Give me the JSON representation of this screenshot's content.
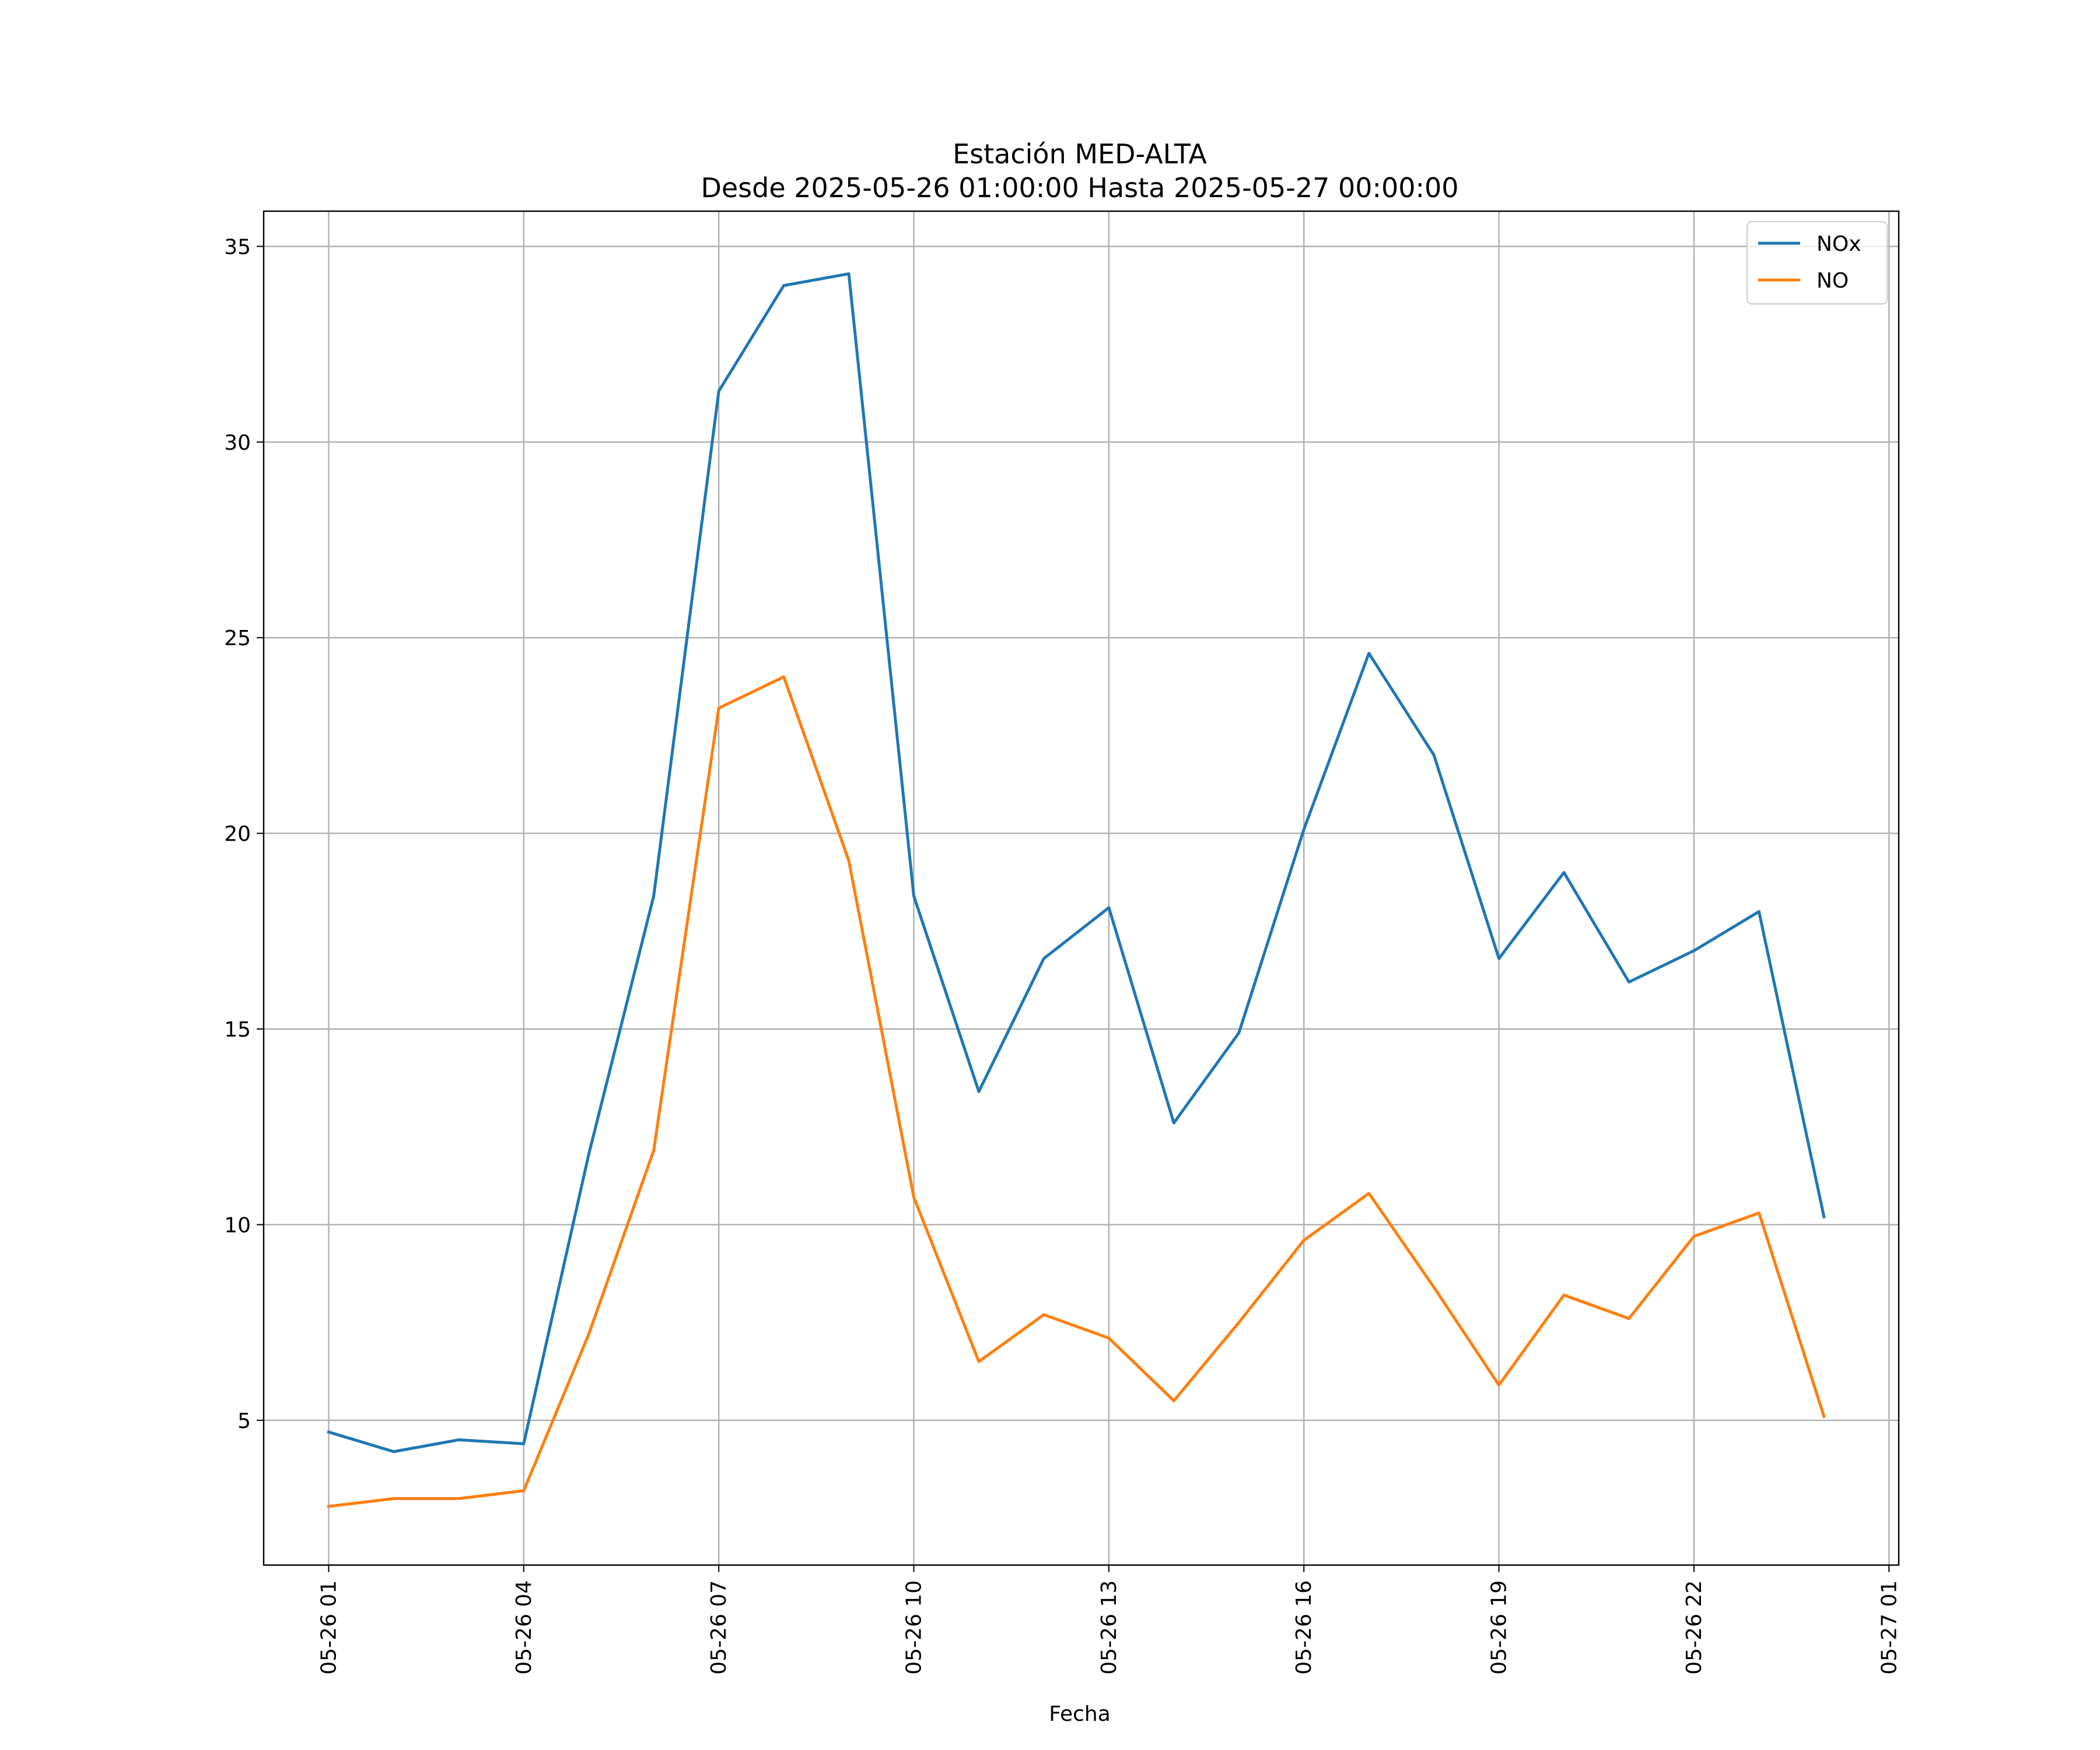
{
  "chart_data": {
    "type": "line",
    "title": "Estación MED-ALTA",
    "subtitle": "Desde 2025-05-26 01:00:00 Hasta 2025-05-27 00:00:00",
    "xlabel": "Fecha",
    "ylabel": "",
    "x": [
      "2025-05-26 01:00",
      "2025-05-26 02:00",
      "2025-05-26 03:00",
      "2025-05-26 04:00",
      "2025-05-26 05:00",
      "2025-05-26 06:00",
      "2025-05-26 07:00",
      "2025-05-26 08:00",
      "2025-05-26 09:00",
      "2025-05-26 10:00",
      "2025-05-26 11:00",
      "2025-05-26 12:00",
      "2025-05-26 13:00",
      "2025-05-26 14:00",
      "2025-05-26 15:00",
      "2025-05-26 16:00",
      "2025-05-26 17:00",
      "2025-05-26 18:00",
      "2025-05-26 19:00",
      "2025-05-26 20:00",
      "2025-05-26 21:00",
      "2025-05-26 22:00",
      "2025-05-26 23:00",
      "2025-05-27 00:00"
    ],
    "x_range": [
      "2025-05-26 00:00",
      "2025-05-27 01:09"
    ],
    "x_ticks": [
      {
        "at": "2025-05-26 01:00",
        "label": "05-26 01"
      },
      {
        "at": "2025-05-26 04:00",
        "label": "05-26 04"
      },
      {
        "at": "2025-05-26 07:00",
        "label": "05-26 07"
      },
      {
        "at": "2025-05-26 10:00",
        "label": "05-26 10"
      },
      {
        "at": "2025-05-26 13:00",
        "label": "05-26 13"
      },
      {
        "at": "2025-05-26 16:00",
        "label": "05-26 16"
      },
      {
        "at": "2025-05-26 19:00",
        "label": "05-26 19"
      },
      {
        "at": "2025-05-26 22:00",
        "label": "05-26 22"
      },
      {
        "at": "2025-05-27 01:00",
        "label": "05-27 01"
      }
    ],
    "ylim": [
      1.3,
      35.9
    ],
    "y_ticks": [
      5,
      10,
      15,
      20,
      25,
      30,
      35
    ],
    "grid": true,
    "legend_position": "top-right",
    "series": [
      {
        "name": "NOx",
        "color": "#1f77b4",
        "values": [
          4.7,
          4.2,
          4.5,
          4.4,
          11.8,
          18.4,
          31.3,
          34.0,
          34.3,
          18.4,
          13.4,
          16.8,
          18.1,
          12.6,
          14.9,
          20.1,
          24.6,
          22.0,
          16.8,
          19.0,
          16.2,
          17.0,
          18.0,
          10.2
        ]
      },
      {
        "name": "NO",
        "color": "#ff7f0e",
        "values": [
          2.8,
          3.0,
          3.0,
          3.2,
          7.2,
          11.9,
          23.2,
          24.0,
          19.3,
          10.7,
          6.5,
          7.7,
          7.1,
          5.5,
          7.5,
          9.6,
          10.8,
          8.4,
          5.9,
          8.2,
          7.6,
          9.7,
          10.3,
          5.1
        ]
      }
    ]
  }
}
